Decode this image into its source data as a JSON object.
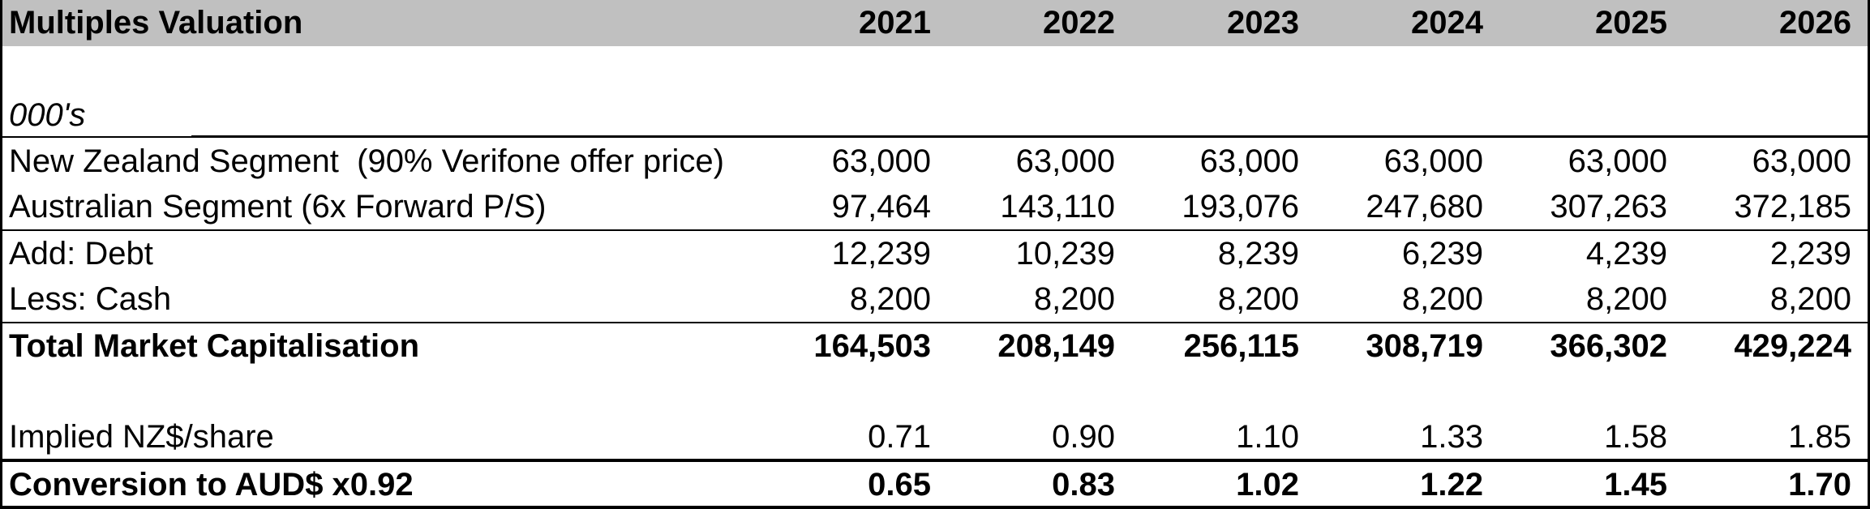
{
  "colors": {
    "header_bg": "#c0c0c0",
    "border": "#000000",
    "text": "#000000"
  },
  "table": {
    "title": "Multiples Valuation",
    "units_label": "000's",
    "years": [
      "2021",
      "2022",
      "2023",
      "2024",
      "2025",
      "2026"
    ],
    "rows": [
      {
        "label": "New Zealand Segment  (90% Verifone offer price)",
        "values": [
          "63,000",
          "63,000",
          "63,000",
          "63,000",
          "63,000",
          "63,000"
        ],
        "bold": false
      },
      {
        "label": "Australian Segment (6x Forward P/S)",
        "values": [
          "97,464",
          "143,110",
          "193,076",
          "247,680",
          "307,263",
          "372,185"
        ],
        "bold": false
      },
      {
        "label": "Add: Debt",
        "values": [
          "12,239",
          "10,239",
          "8,239",
          "6,239",
          "4,239",
          "2,239"
        ],
        "bold": false
      },
      {
        "label": "Less: Cash",
        "values": [
          "8,200",
          "8,200",
          "8,200",
          "8,200",
          "8,200",
          "8,200"
        ],
        "bold": false
      },
      {
        "label": "Total Market Capitalisation",
        "values": [
          "164,503",
          "208,149",
          "256,115",
          "308,719",
          "366,302",
          "429,224"
        ],
        "bold": true
      },
      {
        "label": "Implied NZ$/share",
        "values": [
          "0.71",
          "0.90",
          "1.10",
          "1.33",
          "1.58",
          "1.85"
        ],
        "bold": false
      },
      {
        "label": "Conversion to AUD$ x0.92",
        "values": [
          "0.65",
          "0.83",
          "1.02",
          "1.22",
          "1.45",
          "1.70"
        ],
        "bold": true
      }
    ]
  }
}
